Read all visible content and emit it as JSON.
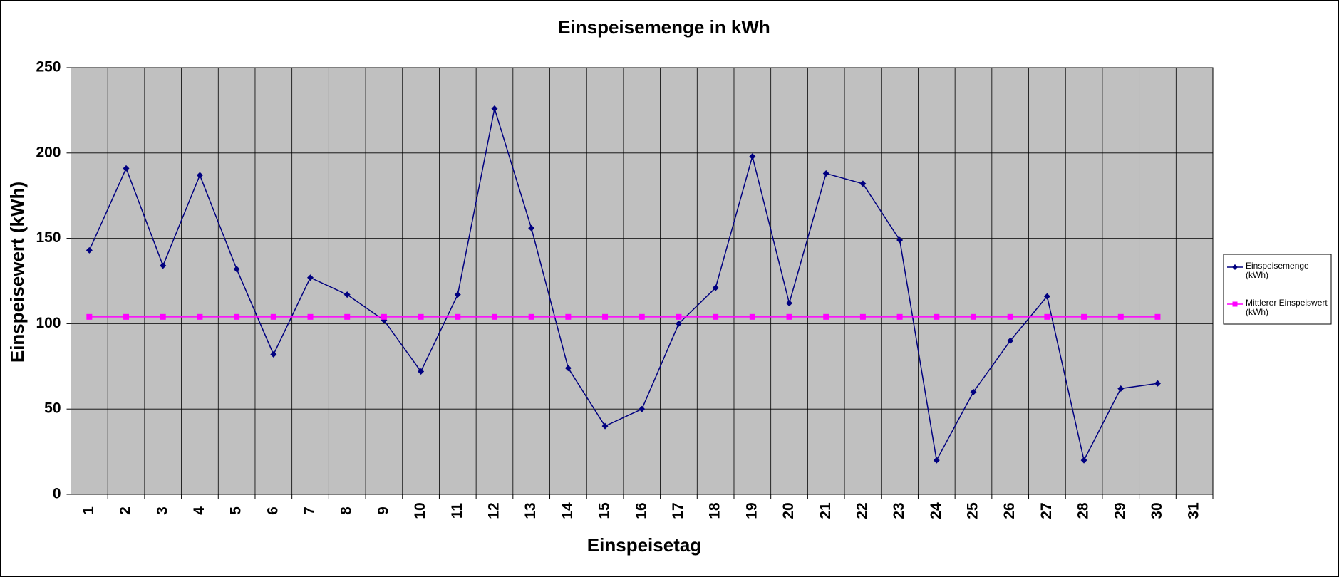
{
  "chart_data": {
    "type": "line",
    "title": "Einspeisemenge in kWh",
    "x_label": "Einspeisetag",
    "y_label": "Einspeisewert  (kWh)",
    "categories": [
      "1",
      "2",
      "3",
      "4",
      "5",
      "6",
      "7",
      "8",
      "9",
      "10",
      "11",
      "12",
      "13",
      "14",
      "15",
      "16",
      "17",
      "18",
      "19",
      "20",
      "21",
      "22",
      "23",
      "24",
      "25",
      "26",
      "27",
      "28",
      "29",
      "30",
      "31"
    ],
    "series": [
      {
        "name": "Einspeisemenge (kWh)",
        "color": "#000080",
        "marker": "diamond",
        "values": [
          143,
          191,
          134,
          187,
          132,
          82,
          127,
          117,
          102,
          72,
          117,
          226,
          156,
          74,
          40,
          50,
          100,
          121,
          198,
          112,
          188,
          182,
          149,
          20,
          60,
          90,
          116,
          20,
          62,
          65,
          null
        ]
      },
      {
        "name": "Mittlerer Einspeiswert (kWh)",
        "color": "#ff00ff",
        "marker": "square",
        "values": [
          104,
          104,
          104,
          104,
          104,
          104,
          104,
          104,
          104,
          104,
          104,
          104,
          104,
          104,
          104,
          104,
          104,
          104,
          104,
          104,
          104,
          104,
          104,
          104,
          104,
          104,
          104,
          104,
          104,
          104,
          null
        ]
      }
    ],
    "ylim": [
      0,
      250
    ],
    "yticks": [
      0,
      50,
      100,
      150,
      200,
      250
    ],
    "grid": true,
    "plot_background": "#c0c0c0",
    "legend_position": "right"
  }
}
